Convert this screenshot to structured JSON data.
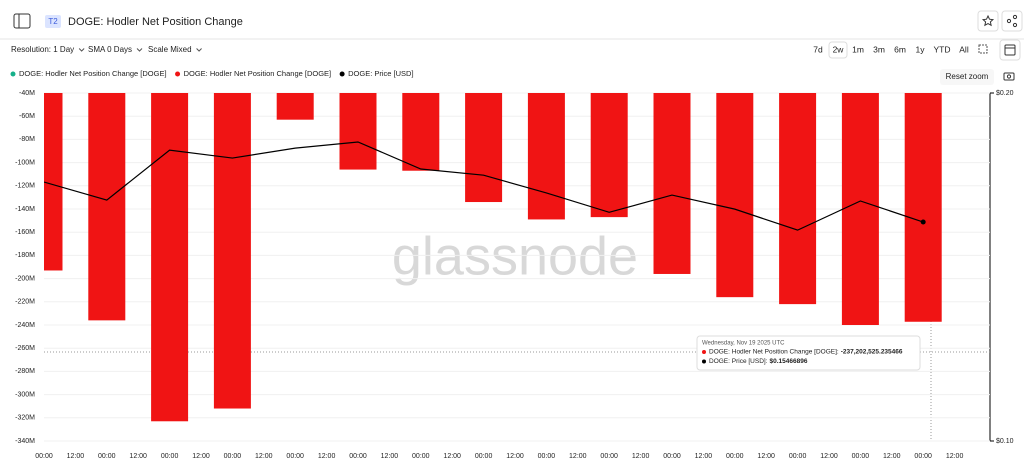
{
  "header": {
    "badge": "T2",
    "title": "DOGE: Hodler Net Position Change"
  },
  "toolbar": {
    "controls": [
      "Resolution: 1 Day",
      "SMA 0 Days",
      "Scale Mixed"
    ],
    "ranges": [
      "7d",
      "2w",
      "1m",
      "3m",
      "6m",
      "1y",
      "YTD",
      "All"
    ],
    "active_range": "2w",
    "reset": "Reset zoom"
  },
  "chart_data": {
    "type": "bar",
    "watermark": "glassnode",
    "categories": [
      null,
      null,
      null,
      null,
      null,
      null,
      null,
      null,
      null,
      null,
      null,
      null,
      null,
      null,
      null
    ],
    "xticks": [
      "00:00",
      "12:00",
      "00:00",
      "12:00",
      "00:00",
      "12:00",
      "00:00",
      "12:00",
      "00:00",
      "12:00",
      "00:00",
      "12:00",
      "00:00",
      "12:00",
      "00:00",
      "12:00",
      "00:00",
      "12:00",
      "00:00",
      "12:00",
      "00:00",
      "12:00",
      "00:00",
      "12:00",
      "00:00",
      "12:00",
      "00:00",
      "12:00",
      "00:00",
      "12:00"
    ],
    "series": [
      {
        "name": "DOGE: Hodler Net Position Change [DOGE]",
        "color": "#16b08a",
        "type": "bar",
        "values": [
          null,
          null,
          null,
          null,
          null,
          null,
          null,
          null,
          null,
          null,
          null,
          null,
          null,
          null,
          null
        ]
      },
      {
        "name": "DOGE: Hodler Net Position Change [DOGE]",
        "color": "#f01414",
        "type": "bar",
        "values": [
          -193000000,
          -236000000,
          -323000000,
          -312000000,
          -63000000,
          -106000000,
          -107000000,
          -134000000,
          -149000000,
          -147000000,
          -196000000,
          -216000000,
          -222000000,
          -240000000,
          -237202525.235466
        ]
      },
      {
        "name": "DOGE: Price [USD]",
        "color": "#000000",
        "type": "line",
        "axis": "y2",
        "values": [
          0.1675,
          0.1616,
          0.1785,
          0.1757,
          0.1792,
          0.1814,
          0.1719,
          0.1698,
          0.1639,
          0.1577,
          0.1632,
          0.1587,
          0.1522,
          0.1613,
          0.15466896
        ]
      }
    ],
    "ylim": [
      -340000000,
      -40000000
    ],
    "yticks": [
      {
        "value": -40000000,
        "label": "-40M"
      },
      {
        "value": -60000000,
        "label": "-60M"
      },
      {
        "value": -80000000,
        "label": "-80M"
      },
      {
        "value": -100000000,
        "label": "-100M"
      },
      {
        "value": -120000000,
        "label": "-120M"
      },
      {
        "value": -140000000,
        "label": "-140M"
      },
      {
        "value": -160000000,
        "label": "-160M"
      },
      {
        "value": -180000000,
        "label": "-180M"
      },
      {
        "value": -200000000,
        "label": "-200M"
      },
      {
        "value": -220000000,
        "label": "-220M"
      },
      {
        "value": -240000000,
        "label": "-240M"
      },
      {
        "value": -260000000,
        "label": "-260M"
      },
      {
        "value": -280000000,
        "label": "-280M"
      },
      {
        "value": -300000000,
        "label": "-300M"
      },
      {
        "value": -320000000,
        "label": "-320M"
      },
      {
        "value": -340000000,
        "label": "-340M"
      }
    ],
    "y2lim": [
      0.1,
      0.2
    ],
    "y2scale": "log",
    "y2ticks": [
      {
        "value": 0.2,
        "label": "$0.20"
      },
      {
        "value": 0.1,
        "label": "$0.10"
      }
    ],
    "grid": true,
    "tooltip": {
      "date": "Wednesday, Nov 19 2025 UTC",
      "rows": [
        {
          "label": "DOGE: Hodler Net Position Change [DOGE]:",
          "value_label": "-237,202,525.235466"
        },
        {
          "label": "DOGE: Price [USD]:",
          "value_label": "$0.15466896"
        }
      ]
    }
  }
}
